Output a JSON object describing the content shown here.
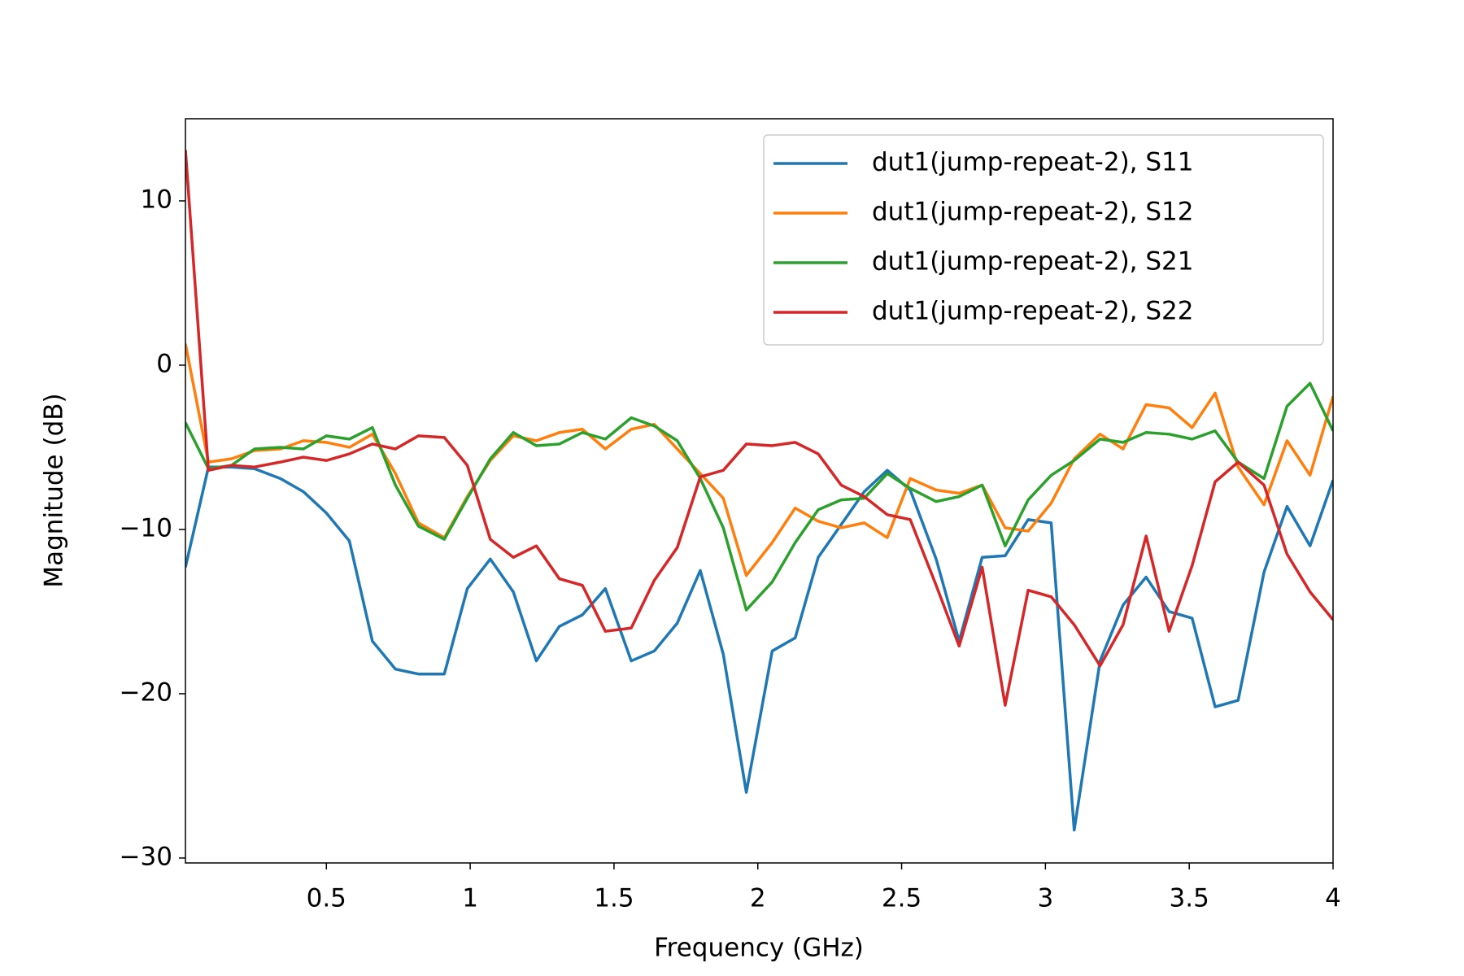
{
  "chart_data": {
    "type": "line",
    "xlabel": "Frequency (GHz)",
    "ylabel": "Magnitude (dB)",
    "x": [
      0.01,
      0.09,
      0.17,
      0.25,
      0.34,
      0.42,
      0.5,
      0.58,
      0.66,
      0.74,
      0.82,
      0.91,
      0.99,
      1.07,
      1.15,
      1.23,
      1.31,
      1.39,
      1.47,
      1.56,
      1.64,
      1.72,
      1.8,
      1.88,
      1.96,
      2.05,
      2.13,
      2.21,
      2.29,
      2.37,
      2.45,
      2.53,
      2.62,
      2.7,
      2.78,
      2.86,
      2.94,
      3.02,
      3.1,
      3.19,
      3.27,
      3.35,
      3.43,
      3.51,
      3.59,
      3.67,
      3.76,
      3.84,
      3.92,
      4.0
    ],
    "series": [
      {
        "name": "dut1(jump-repeat-2), S11",
        "color": "#1f77b4",
        "values": [
          -12.3,
          -6.2,
          -6.2,
          -6.3,
          -6.9,
          -7.7,
          -9.0,
          -10.7,
          -16.8,
          -18.5,
          -18.8,
          -18.8,
          -13.6,
          -11.8,
          -13.8,
          -18.0,
          -15.9,
          -15.2,
          -13.6,
          -18.0,
          -17.4,
          -15.7,
          -12.5,
          -17.6,
          -26.0,
          -17.4,
          -16.6,
          -11.7,
          -9.7,
          -7.7,
          -6.4,
          -7.6,
          -11.8,
          -16.8,
          -11.7,
          -11.6,
          -9.4,
          -9.6,
          -28.3,
          -18.0,
          -14.6,
          -12.9,
          -15.0,
          -15.4,
          -20.8,
          -20.4,
          -12.6,
          -8.6,
          -11.0,
          -7.0
        ]
      },
      {
        "name": "dut1(jump-repeat-2), S12",
        "color": "#ff7f0e",
        "values": [
          1.3,
          -5.9,
          -5.7,
          -5.2,
          -5.1,
          -4.6,
          -4.7,
          -5.0,
          -4.2,
          -6.6,
          -9.6,
          -10.5,
          -8.0,
          -5.8,
          -4.3,
          -4.6,
          -4.1,
          -3.9,
          -5.1,
          -3.9,
          -3.6,
          -5.1,
          -6.6,
          -8.1,
          -12.8,
          -10.8,
          -8.7,
          -9.5,
          -9.9,
          -9.6,
          -10.5,
          -6.9,
          -7.6,
          -7.8,
          -7.3,
          -9.9,
          -10.1,
          -8.4,
          -5.7,
          -4.2,
          -5.1,
          -2.4,
          -2.6,
          -3.8,
          -1.7,
          -6.2,
          -8.5,
          -4.6,
          -6.7,
          -1.9
        ]
      },
      {
        "name": "dut1(jump-repeat-2), S21",
        "color": "#2ca02c",
        "values": [
          -3.5,
          -6.3,
          -6.1,
          -5.1,
          -5.0,
          -5.1,
          -4.3,
          -4.5,
          -3.8,
          -7.3,
          -9.8,
          -10.6,
          -8.1,
          -5.7,
          -4.1,
          -4.9,
          -4.8,
          -4.1,
          -4.5,
          -3.2,
          -3.7,
          -4.6,
          -6.9,
          -9.9,
          -14.9,
          -13.2,
          -10.8,
          -8.8,
          -8.2,
          -8.1,
          -6.6,
          -7.5,
          -8.3,
          -8.0,
          -7.3,
          -11.0,
          -8.2,
          -6.7,
          -5.8,
          -4.5,
          -4.7,
          -4.1,
          -4.2,
          -4.5,
          -4.0,
          -5.9,
          -6.9,
          -2.5,
          -1.1,
          -4.0
        ]
      },
      {
        "name": "dut1(jump-repeat-2), S22",
        "color": "#d62728",
        "values": [
          13.1,
          -6.4,
          -6.1,
          -6.2,
          -5.9,
          -5.6,
          -5.8,
          -5.4,
          -4.8,
          -5.1,
          -4.3,
          -4.4,
          -6.1,
          -10.6,
          -11.7,
          -11.0,
          -13.0,
          -13.4,
          -16.2,
          -16.0,
          -13.1,
          -11.1,
          -6.8,
          -6.4,
          -4.8,
          -4.9,
          -4.7,
          -5.4,
          -7.3,
          -8.0,
          -9.1,
          -9.4,
          -13.4,
          -17.1,
          -12.3,
          -20.7,
          -13.7,
          -14.1,
          -15.8,
          -18.3,
          -15.8,
          -10.4,
          -16.2,
          -12.2,
          -7.1,
          -5.9,
          -7.3,
          -11.5,
          -13.8,
          -15.5
        ]
      }
    ],
    "xlim": [
      0.01,
      4
    ],
    "xticks": [
      0.5,
      1,
      1.5,
      2,
      2.5,
      3,
      3.5,
      4
    ],
    "ylim": [
      -30.3,
      15
    ],
    "yticks": [
      {
        "value": -30,
        "label": "−30"
      },
      {
        "value": -20,
        "label": "−20"
      },
      {
        "value": -10,
        "label": "−10"
      },
      0,
      10
    ],
    "legend": "upper right",
    "grid": false
  }
}
